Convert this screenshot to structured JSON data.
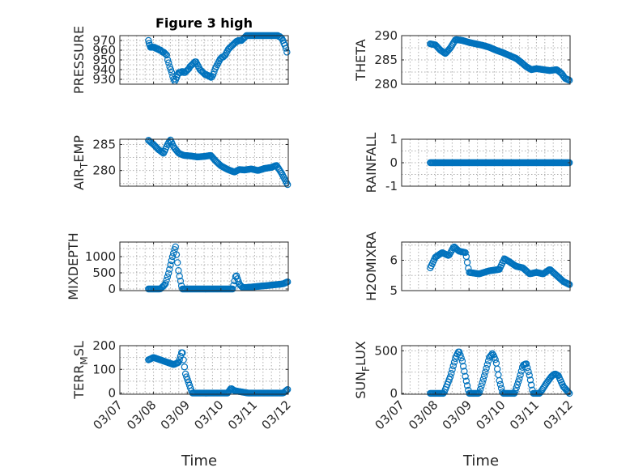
{
  "figure": {
    "title": "Figure 3 high",
    "xlabel": "Time",
    "marker_color": "#0072BD",
    "x_tick_labels": [
      "03/07",
      "03/08",
      "03/09",
      "03/10",
      "03/11",
      "03/12"
    ]
  },
  "chart_data": [
    {
      "id": "pressure",
      "type": "scatter",
      "title": "Figure 3 high",
      "ylabel": "PRESSURE",
      "ylabel_sub": "",
      "ylabel_tail": "",
      "xlim": [
        0,
        5
      ],
      "ylim": [
        925,
        975
      ],
      "yticks": [
        930,
        940,
        950,
        960,
        970
      ],
      "ytick_labels": [
        "930",
        "940",
        "950",
        "960",
        "970"
      ],
      "show_xticklabels": false,
      "x": [
        0.85,
        0.87,
        0.89,
        0.91,
        0.93,
        0.95,
        0.97,
        0.99,
        1.01,
        1.03,
        1.06,
        1.09,
        1.12,
        1.15,
        1.18,
        1.21,
        1.24,
        1.27,
        1.3,
        1.33,
        1.36,
        1.39,
        1.42,
        1.45,
        1.48,
        1.51,
        1.54,
        1.57,
        1.6,
        1.63,
        1.66,
        1.69,
        1.72,
        1.75,
        1.78,
        1.81,
        1.84,
        1.87,
        1.9,
        1.93,
        1.96,
        1.99,
        2.02,
        2.05,
        2.08,
        2.11,
        2.14,
        2.17,
        2.2,
        2.23,
        2.26,
        2.29,
        2.32,
        2.35,
        2.38,
        2.41,
        2.44,
        2.47,
        2.5,
        2.53,
        2.56,
        2.59,
        2.62,
        2.65,
        2.68,
        2.71,
        2.74,
        2.77,
        2.8,
        2.83,
        2.86,
        2.89,
        2.92,
        2.95,
        2.98,
        3.01,
        3.04,
        3.07,
        3.1,
        3.13,
        3.16,
        3.19,
        3.22,
        3.25,
        3.28,
        3.31,
        3.34,
        3.37,
        3.4,
        3.43,
        3.46,
        3.49,
        3.52,
        3.55,
        3.58,
        3.61,
        3.64,
        3.67,
        3.7,
        3.73,
        3.76,
        3.79,
        3.82,
        3.85,
        3.88,
        3.91,
        3.94,
        3.97,
        4.0,
        4.03,
        4.06,
        4.09,
        4.12,
        4.15,
        4.18,
        4.21,
        4.24,
        4.27,
        4.3,
        4.33,
        4.36,
        4.39,
        4.42,
        4.45,
        4.48,
        4.51,
        4.54,
        4.57,
        4.6,
        4.63,
        4.66,
        4.69,
        4.72,
        4.75,
        4.78,
        4.81,
        4.84,
        4.87,
        4.9,
        4.93,
        4.96
      ],
      "y": [
        970,
        967,
        965,
        963,
        963,
        963,
        963,
        963,
        963,
        963,
        962,
        962,
        961,
        961,
        960,
        960,
        959,
        958,
        958,
        957,
        956,
        955,
        950,
        947,
        943,
        940,
        937,
        933,
        930,
        928,
        930,
        932,
        935,
        937,
        937,
        937,
        938,
        938,
        937,
        937,
        938,
        939,
        940,
        941,
        943,
        944,
        945,
        946,
        947,
        948,
        948,
        946,
        944,
        942,
        940,
        939,
        938,
        937,
        936,
        935,
        935,
        934,
        934,
        933,
        933,
        932,
        933,
        935,
        938,
        941,
        943,
        945,
        947,
        949,
        951,
        952,
        953,
        953,
        954,
        955,
        957,
        959,
        961,
        962,
        963,
        964,
        965,
        966,
        967,
        968,
        969,
        969,
        970,
        970,
        970,
        970,
        971,
        972,
        973,
        974,
        975,
        976,
        976,
        976,
        976,
        976,
        976,
        976,
        976,
        976,
        976,
        976,
        976,
        976,
        976,
        976,
        976,
        976,
        976,
        976,
        976,
        976,
        976,
        976,
        976,
        976,
        976,
        976,
        975,
        975,
        975,
        975,
        974,
        974,
        973,
        972,
        970,
        967,
        965,
        962,
        958
      ],
      "points_note": "approximate"
    },
    {
      "id": "theta",
      "type": "scatter",
      "title": "",
      "ylabel": "THETA",
      "ylabel_sub": "",
      "ylabel_tail": "",
      "xlim": [
        0,
        5
      ],
      "ylim": [
        280,
        290
      ],
      "yticks": [
        280,
        285,
        290
      ],
      "ytick_labels": [
        "280",
        "285",
        "290"
      ],
      "show_xticklabels": false,
      "x": [],
      "y": []
    },
    {
      "id": "air_temp",
      "type": "scatter",
      "title": "",
      "ylabel": "AIR",
      "ylabel_sub": "T",
      "ylabel_tail": "EMP",
      "xlim": [
        0,
        5
      ],
      "ylim": [
        277,
        286
      ],
      "yticks": [
        280,
        285
      ],
      "ytick_labels": [
        "280",
        "285"
      ],
      "show_xticklabels": false,
      "x": [],
      "y": []
    },
    {
      "id": "rainfall",
      "type": "scatter",
      "title": "",
      "ylabel": "RAINFALL",
      "ylabel_sub": "",
      "ylabel_tail": "",
      "xlim": [
        0,
        5
      ],
      "ylim": [
        -1,
        1
      ],
      "yticks": [
        -1,
        0,
        1
      ],
      "ytick_labels": [
        "-1",
        "0",
        "1"
      ],
      "show_xticklabels": false,
      "x": [],
      "y": []
    },
    {
      "id": "mixdepth",
      "type": "scatter",
      "title": "",
      "ylabel": "MIXDEPTH",
      "ylabel_sub": "",
      "ylabel_tail": "",
      "xlim": [
        0,
        5
      ],
      "ylim": [
        -50,
        1450
      ],
      "yticks": [
        0,
        500,
        1000
      ],
      "ytick_labels": [
        "0",
        "500",
        "1000"
      ],
      "show_xticklabels": false,
      "x": [],
      "y": []
    },
    {
      "id": "h2omixra",
      "type": "scatter",
      "title": "",
      "ylabel": "H2OMIXRA",
      "ylabel_sub": "",
      "ylabel_tail": "",
      "xlim": [
        0,
        5
      ],
      "ylim": [
        5,
        6.6
      ],
      "yticks": [
        5,
        6
      ],
      "ytick_labels": [
        "5",
        "6"
      ],
      "show_xticklabels": false,
      "x": [],
      "y": []
    },
    {
      "id": "terr_msl",
      "type": "scatter",
      "title": "",
      "ylabel": "TERR",
      "ylabel_sub": "M",
      "ylabel_tail": "SL",
      "xlim": [
        0,
        5
      ],
      "ylim": [
        -5,
        200
      ],
      "yticks": [
        0,
        100,
        200
      ],
      "ytick_labels": [
        "0",
        "100",
        "200"
      ],
      "show_xticklabels": true,
      "x": [],
      "y": []
    },
    {
      "id": "sun_flux",
      "type": "scatter",
      "title": "",
      "ylabel": "SUN",
      "ylabel_sub": "F",
      "ylabel_tail": "LUX",
      "xlim": [
        0,
        5
      ],
      "ylim": [
        -10,
        560
      ],
      "yticks": [
        0,
        500
      ],
      "ytick_labels": [
        "0",
        "500"
      ],
      "show_xticklabels": true,
      "x": [],
      "y": []
    }
  ]
}
